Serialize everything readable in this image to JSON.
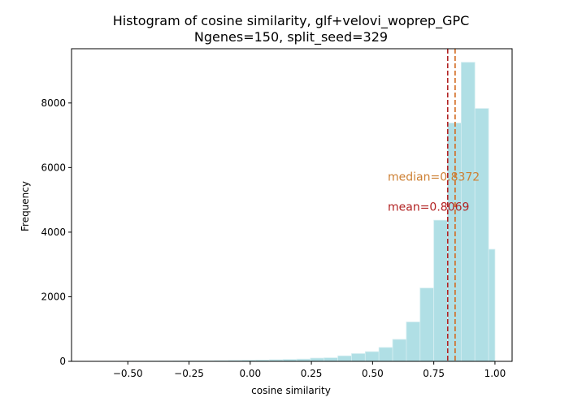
{
  "chart_data": {
    "type": "bar",
    "subtype": "histogram",
    "title": "Histogram of cosine similarity, glf+velovi_woprep_GPC",
    "subtitle": "Ngenes=150, split_seed=329",
    "xlabel": "cosine similarity",
    "ylabel": "Frequency",
    "xlim": [
      -0.73,
      1.07
    ],
    "ylim": [
      0,
      9680
    ],
    "xticks": [
      -0.5,
      -0.25,
      0.0,
      0.25,
      0.5,
      0.75,
      1.0
    ],
    "xtick_labels": [
      "−0.50",
      "−0.25",
      "0.00",
      "0.25",
      "0.50",
      "0.75",
      "1.00"
    ],
    "yticks": [
      0,
      2000,
      4000,
      6000,
      8000
    ],
    "ytick_labels": [
      "0",
      "2000",
      "4000",
      "6000",
      "8000"
    ],
    "bin_edges": [
      -0.65,
      -0.594,
      -0.538,
      -0.482,
      -0.426,
      -0.37,
      -0.314,
      -0.258,
      -0.202,
      -0.146,
      -0.09,
      -0.034,
      0.022,
      0.078,
      0.134,
      0.19,
      0.246,
      0.302,
      0.358,
      0.414,
      0.47,
      0.526,
      0.582,
      0.638,
      0.694,
      0.75,
      0.806,
      0.862,
      0.918,
      0.974,
      1.0
    ],
    "counts": [
      2,
      3,
      5,
      8,
      10,
      12,
      15,
      18,
      20,
      25,
      30,
      35,
      40,
      50,
      60,
      70,
      100,
      110,
      170,
      240,
      300,
      430,
      680,
      1220,
      2270,
      4370,
      7380,
      9260,
      7830,
      3470
    ],
    "bar_color": "#b0dfe5",
    "bar_edge_color": "#d6eef1",
    "annotations": [
      {
        "label": "median=0.8372",
        "value": 0.8372,
        "color": "#cd7f32",
        "line_color": "#d2691e",
        "text_y": 5600
      },
      {
        "label": "mean=0.8069",
        "value": 0.8069,
        "color": "#b22222",
        "line_color": "#b22222",
        "text_y": 4670
      }
    ],
    "grid": false,
    "legend": "none"
  }
}
